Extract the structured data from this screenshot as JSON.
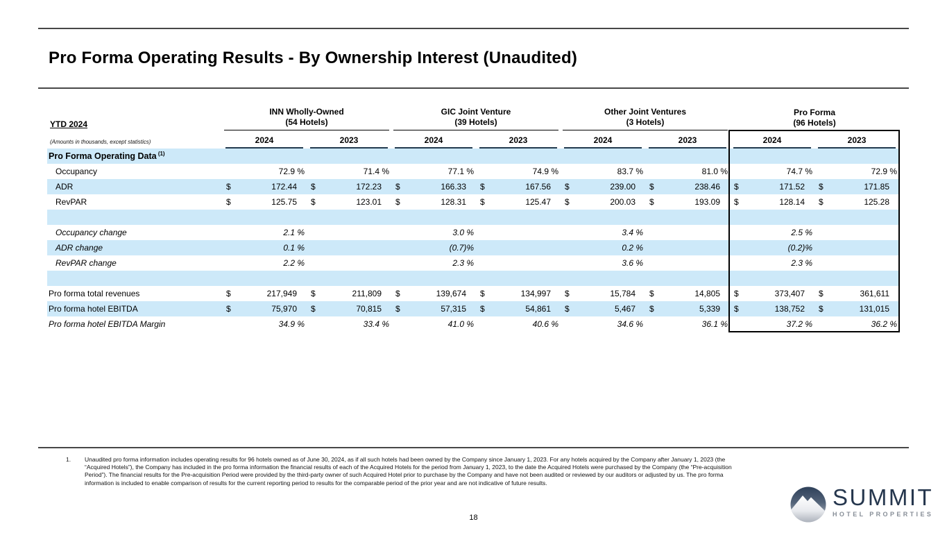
{
  "page": {
    "title": "Pro Forma Operating Results - By Ownership Interest (Unaudited)",
    "page_number": "18"
  },
  "table": {
    "period_label": "YTD 2024",
    "units_note": "(Amounts in thousands, except statistics)",
    "groups": [
      {
        "name": "INN Wholly-Owned",
        "hotels": "(54 Hotels)"
      },
      {
        "name": "GIC Joint Venture",
        "hotels": "(39 Hotels)"
      },
      {
        "name": "Other Joint Ventures",
        "hotels": "(3 Hotels)"
      },
      {
        "name": "Pro Forma",
        "hotels": "(96 Hotels)"
      }
    ],
    "year_headers": [
      "2024",
      "2023",
      "2024",
      "2023",
      "2024",
      "2023",
      "2024",
      "2023"
    ],
    "rows": [
      {
        "label": "Pro Forma Operating Data",
        "sup": "(1)",
        "style": "section",
        "bg": "blue",
        "indent": false,
        "cells": [
          null,
          null,
          null,
          null,
          null,
          null,
          null,
          null
        ]
      },
      {
        "label": "Occupancy",
        "style": "plain",
        "bg": "white",
        "indent": true,
        "cells": [
          [
            "",
            "72.9 %"
          ],
          [
            "",
            "71.4 %"
          ],
          [
            "",
            "77.1 %"
          ],
          [
            "",
            "74.9 %"
          ],
          [
            "",
            "83.7 %"
          ],
          [
            "",
            "81.0 %"
          ],
          [
            "",
            "74.7 %"
          ],
          [
            "",
            "72.9 %"
          ]
        ]
      },
      {
        "label": "ADR",
        "style": "plain",
        "bg": "blue",
        "indent": true,
        "cells": [
          [
            "$",
            "172.44"
          ],
          [
            "$",
            "172.23"
          ],
          [
            "$",
            "166.33"
          ],
          [
            "$",
            "167.56"
          ],
          [
            "$",
            "239.00"
          ],
          [
            "$",
            "238.46"
          ],
          [
            "$",
            "171.52"
          ],
          [
            "$",
            "171.85"
          ]
        ]
      },
      {
        "label": "RevPAR",
        "style": "plain",
        "bg": "white",
        "indent": true,
        "cells": [
          [
            "$",
            "125.75"
          ],
          [
            "$",
            "123.01"
          ],
          [
            "$",
            "128.31"
          ],
          [
            "$",
            "125.47"
          ],
          [
            "$",
            "200.03"
          ],
          [
            "$",
            "193.09"
          ],
          [
            "$",
            "128.14"
          ],
          [
            "$",
            "125.28"
          ]
        ]
      },
      {
        "label": "",
        "style": "plain",
        "bg": "blue",
        "indent": false,
        "cells": [
          null,
          null,
          null,
          null,
          null,
          null,
          null,
          null
        ]
      },
      {
        "label": "Occupancy change",
        "style": "italic",
        "bg": "white",
        "indent": true,
        "cells": [
          [
            "",
            "2.1 %"
          ],
          null,
          [
            "",
            "3.0 %"
          ],
          null,
          [
            "",
            "3.4 %"
          ],
          null,
          [
            "",
            "2.5 %"
          ],
          null
        ]
      },
      {
        "label": "ADR change",
        "style": "italic",
        "bg": "blue",
        "indent": true,
        "cells": [
          [
            "",
            "0.1 %"
          ],
          null,
          [
            "",
            "(0.7)%"
          ],
          null,
          [
            "",
            "0.2 %"
          ],
          null,
          [
            "",
            "(0.2)%"
          ],
          null
        ]
      },
      {
        "label": "RevPAR change",
        "style": "italic",
        "bg": "white",
        "indent": true,
        "cells": [
          [
            "",
            "2.2 %"
          ],
          null,
          [
            "",
            "2.3 %"
          ],
          null,
          [
            "",
            "3.6 %"
          ],
          null,
          [
            "",
            "2.3 %"
          ],
          null
        ]
      },
      {
        "label": "",
        "style": "plain",
        "bg": "blue",
        "indent": false,
        "cells": [
          null,
          null,
          null,
          null,
          null,
          null,
          null,
          null
        ]
      },
      {
        "label": "Pro forma total revenues",
        "style": "plain",
        "bg": "white",
        "indent": false,
        "cells": [
          [
            "$",
            "217,949"
          ],
          [
            "$",
            "211,809"
          ],
          [
            "$",
            "139,674"
          ],
          [
            "$",
            "134,997"
          ],
          [
            "$",
            "15,784"
          ],
          [
            "$",
            "14,805"
          ],
          [
            "$",
            "373,407"
          ],
          [
            "$",
            "361,611"
          ]
        ]
      },
      {
        "label": "Pro forma hotel EBITDA",
        "style": "plain",
        "bg": "blue",
        "indent": false,
        "cells": [
          [
            "$",
            "75,970"
          ],
          [
            "$",
            "70,815"
          ],
          [
            "$",
            "57,315"
          ],
          [
            "$",
            "54,861"
          ],
          [
            "$",
            "5,467"
          ],
          [
            "$",
            "5,339"
          ],
          [
            "$",
            "138,752"
          ],
          [
            "$",
            "131,015"
          ]
        ]
      },
      {
        "label": "Pro forma hotel EBITDA Margin",
        "style": "italic",
        "bg": "white",
        "indent": false,
        "cells": [
          [
            "",
            "34.9 %"
          ],
          [
            "",
            "33.4 %"
          ],
          [
            "",
            "41.0 %"
          ],
          [
            "",
            "40.6 %"
          ],
          [
            "",
            "34.6 %"
          ],
          [
            "",
            "36.1 %"
          ],
          [
            "",
            "37.2 %"
          ],
          [
            "",
            "36.2 %"
          ]
        ]
      }
    ]
  },
  "footnote": {
    "number": "1.",
    "text": "Unaudited pro forma information includes operating results for 96 hotels owned as of June 30, 2024, as if all such hotels had been owned by the Company since January 1, 2023. For any hotels acquired by the Company after January 1, 2023 (the “Acquired Hotels”), the Company has included in the pro forma information the financial results of each of the Acquired Hotels for the period from January 1, 2023, to the date the Acquired Hotels were purchased by the Company (the “Pre-acquisition Period”). The financial results for the Pre-acquisition Period were provided by the third-party owner of such Acquired Hotel prior to purchase by the Company and have not been audited or reviewed by our auditors or adjusted by us. The pro forma information is included to enable comparison of results for the current reporting period to results for the comparable period of the prior year and are not indicative of future results."
  },
  "logo": {
    "name": "SUMMIT",
    "subtitle": "HOTEL PROPERTIES",
    "icon": "mountain-circle-icon"
  },
  "colors": {
    "row_blue": "#cde9f9",
    "line_navy": "#223a4e",
    "rule_gray": "#474747",
    "box_black": "#000000",
    "logo_navy": "#25364d",
    "logo_gray": "#878e97"
  }
}
